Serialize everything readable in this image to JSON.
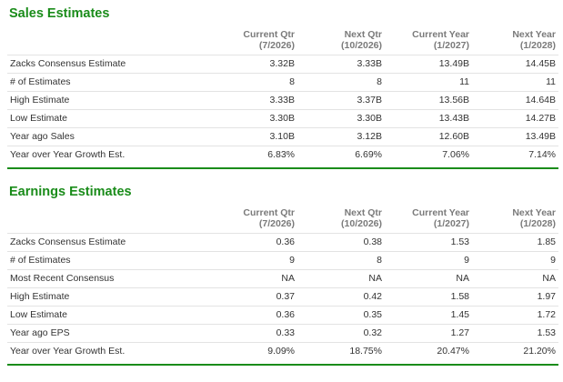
{
  "sales": {
    "title": "Sales Estimates",
    "columns": [
      {
        "line1": "Current Qtr",
        "line2": "(7/2026)"
      },
      {
        "line1": "Next Qtr",
        "line2": "(10/2026)"
      },
      {
        "line1": "Current Year",
        "line2": "(1/2027)"
      },
      {
        "line1": "Next Year",
        "line2": "(1/2028)"
      }
    ],
    "rows": [
      {
        "label": "Zacks Consensus Estimate",
        "values": [
          "3.32B",
          "3.33B",
          "13.49B",
          "14.45B"
        ]
      },
      {
        "label": "# of Estimates",
        "values": [
          "8",
          "8",
          "11",
          "11"
        ]
      },
      {
        "label": "High Estimate",
        "values": [
          "3.33B",
          "3.37B",
          "13.56B",
          "14.64B"
        ]
      },
      {
        "label": "Low Estimate",
        "values": [
          "3.30B",
          "3.30B",
          "13.43B",
          "14.27B"
        ]
      },
      {
        "label": "Year ago Sales",
        "values": [
          "3.10B",
          "3.12B",
          "12.60B",
          "13.49B"
        ]
      },
      {
        "label": "Year over Year Growth Est.",
        "values": [
          "6.83%",
          "6.69%",
          "7.06%",
          "7.14%"
        ]
      }
    ]
  },
  "earnings": {
    "title": "Earnings Estimates",
    "columns": [
      {
        "line1": "Current Qtr",
        "line2": "(7/2026)"
      },
      {
        "line1": "Next Qtr",
        "line2": "(10/2026)"
      },
      {
        "line1": "Current Year",
        "line2": "(1/2027)"
      },
      {
        "line1": "Next Year",
        "line2": "(1/2028)"
      }
    ],
    "rows": [
      {
        "label": "Zacks Consensus Estimate",
        "values": [
          "0.36",
          "0.38",
          "1.53",
          "1.85"
        ]
      },
      {
        "label": "# of Estimates",
        "values": [
          "9",
          "8",
          "9",
          "9"
        ]
      },
      {
        "label": "Most Recent Consensus",
        "values": [
          "NA",
          "NA",
          "NA",
          "NA"
        ]
      },
      {
        "label": "High Estimate",
        "values": [
          "0.37",
          "0.42",
          "1.58",
          "1.97"
        ]
      },
      {
        "label": "Low Estimate",
        "values": [
          "0.36",
          "0.35",
          "1.45",
          "1.72"
        ]
      },
      {
        "label": "Year ago EPS",
        "values": [
          "0.33",
          "0.32",
          "1.27",
          "1.53"
        ]
      },
      {
        "label": "Year over Year Growth Est.",
        "values": [
          "9.09%",
          "18.75%",
          "20.47%",
          "21.20%"
        ]
      }
    ]
  },
  "colors": {
    "title_green": "#1a8c1a",
    "header_gray": "#7a7a7a",
    "text": "#333333",
    "rule": "#e3e3e3"
  }
}
